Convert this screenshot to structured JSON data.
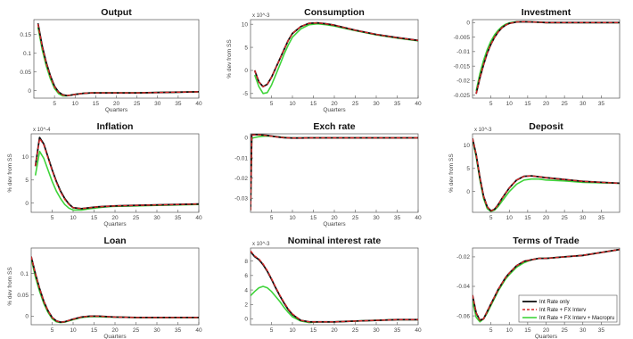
{
  "colors": {
    "black": "#111111",
    "red": "#d62728",
    "green": "#3fd43a",
    "axis": "#555555",
    "grid": "#e6e6e6"
  },
  "legend": {
    "placement": "bottom-right",
    "entries": [
      "Int Rate only",
      "Int Rate + FX Interv",
      "Int Rate + FX Interv + Macropru"
    ]
  },
  "chart_data": [
    {
      "type": "line",
      "title": "Output",
      "xlabel": "Quarters",
      "ylabel": "",
      "xlim": [
        0,
        40
      ],
      "ylim": [
        -0.02,
        0.19
      ],
      "xticks": [
        "5",
        "10",
        "15",
        "20",
        "25",
        "30",
        "35",
        "40"
      ],
      "yticks": [
        "0",
        "0.05",
        "0.1",
        "0.15"
      ],
      "exponent": "",
      "x": [
        1,
        2,
        3,
        4,
        5,
        6,
        7,
        8,
        9,
        10,
        12,
        14,
        16,
        18,
        20,
        25,
        30,
        35,
        40
      ],
      "series": [
        {
          "values": [
            0.18,
            0.12,
            0.075,
            0.04,
            0.012,
            -0.004,
            -0.011,
            -0.013,
            -0.012,
            -0.01,
            -0.007,
            -0.006,
            -0.006,
            -0.006,
            -0.006,
            -0.006,
            -0.005,
            -0.004,
            -0.003
          ]
        },
        {
          "values": [
            0.178,
            0.118,
            0.073,
            0.038,
            0.01,
            -0.005,
            -0.012,
            -0.013,
            -0.012,
            -0.01,
            -0.007,
            -0.006,
            -0.006,
            -0.006,
            -0.006,
            -0.006,
            -0.005,
            -0.004,
            -0.003
          ]
        },
        {
          "values": [
            0.17,
            0.11,
            0.066,
            0.032,
            0.006,
            -0.008,
            -0.014,
            -0.014,
            -0.012,
            -0.01,
            -0.007,
            -0.006,
            -0.006,
            -0.006,
            -0.006,
            -0.006,
            -0.005,
            -0.004,
            -0.003
          ]
        }
      ]
    },
    {
      "type": "line",
      "title": "Consumption",
      "xlabel": "Quarters",
      "ylabel": "% dev from SS",
      "xlim": [
        0,
        40
      ],
      "ylim": [
        -0.006,
        0.011
      ],
      "xticks": [
        "5",
        "10",
        "15",
        "20",
        "25",
        "30",
        "35",
        "40"
      ],
      "yticks": [
        "-5",
        "0",
        "5",
        "10"
      ],
      "exponent": "x 10^-3",
      "x": [
        1,
        2,
        3,
        4,
        5,
        6,
        7,
        8,
        9,
        10,
        12,
        14,
        16,
        18,
        20,
        25,
        30,
        35,
        40
      ],
      "series": [
        {
          "values": [
            -0.0,
            -0.0025,
            -0.0035,
            -0.003,
            -0.0015,
            0.0005,
            0.0025,
            0.0045,
            0.0065,
            0.008,
            0.0095,
            0.0102,
            0.0103,
            0.0101,
            0.0098,
            0.0087,
            0.0078,
            0.0071,
            0.0065
          ]
        },
        {
          "values": [
            -0.0,
            -0.0025,
            -0.0035,
            -0.003,
            -0.0015,
            0.0005,
            0.0025,
            0.0045,
            0.0065,
            0.008,
            0.0095,
            0.0102,
            0.0103,
            0.0101,
            0.0098,
            0.0087,
            0.0078,
            0.0071,
            0.0065
          ]
        },
        {
          "values": [
            -0.001,
            -0.0035,
            -0.005,
            -0.0048,
            -0.0032,
            -0.001,
            0.0012,
            0.0035,
            0.0055,
            0.0072,
            0.009,
            0.0099,
            0.0101,
            0.0099,
            0.0096,
            0.0086,
            0.0077,
            0.007,
            0.0064
          ]
        }
      ]
    },
    {
      "type": "line",
      "title": "Investment",
      "xlabel": "",
      "ylabel": "",
      "xlim": [
        0,
        40
      ],
      "ylim": [
        -0.026,
        0.001
      ],
      "xticks": [
        "5",
        "10",
        "15",
        "20",
        "25",
        "30",
        "35"
      ],
      "yticks": [
        "0",
        "-0.005",
        "-0.01",
        "-0.015",
        "-0.02",
        "-0.025"
      ],
      "exponent": "",
      "x": [
        1,
        2,
        3,
        4,
        5,
        6,
        7,
        8,
        9,
        10,
        12,
        14,
        16,
        18,
        20,
        25,
        30,
        35,
        40
      ],
      "series": [
        {
          "values": [
            -0.0245,
            -0.019,
            -0.0145,
            -0.0105,
            -0.0075,
            -0.005,
            -0.0032,
            -0.0018,
            -0.0009,
            -0.0003,
            0.0002,
            0.0003,
            0.0002,
            0.0001,
            0.0,
            0.0,
            0.0,
            0.0,
            0.0
          ]
        },
        {
          "values": [
            -0.0245,
            -0.019,
            -0.0145,
            -0.0105,
            -0.0075,
            -0.005,
            -0.0032,
            -0.0018,
            -0.0009,
            -0.0003,
            0.0002,
            0.0003,
            0.0002,
            0.0001,
            0.0,
            0.0,
            0.0,
            0.0,
            0.0
          ]
        },
        {
          "values": [
            -0.0235,
            -0.0175,
            -0.013,
            -0.0093,
            -0.0064,
            -0.0042,
            -0.0026,
            -0.0014,
            -0.0006,
            -0.0001,
            0.0003,
            0.0003,
            0.0002,
            0.0001,
            0.0,
            0.0,
            0.0,
            0.0,
            0.0
          ]
        }
      ]
    },
    {
      "type": "line",
      "title": "Inflation",
      "xlabel": "Quarters",
      "ylabel": "% dev from SS",
      "xlim": [
        0,
        40
      ],
      "ylim": [
        -0.0002,
        0.0015
      ],
      "xticks": [
        "5",
        "10",
        "15",
        "20",
        "25",
        "30",
        "35",
        "40"
      ],
      "yticks": [
        "0",
        "5",
        "10"
      ],
      "exponent": "x 10^-4",
      "x": [
        1,
        2,
        3,
        4,
        5,
        6,
        7,
        8,
        9,
        10,
        12,
        14,
        16,
        18,
        20,
        25,
        30,
        35,
        40
      ],
      "series": [
        {
          "values": [
            0.0008,
            0.00142,
            0.00128,
            0.001,
            0.00072,
            0.00047,
            0.00026,
            0.0001,
            -2e-05,
            -0.0001,
            -0.00012,
            -0.0001,
            -8e-05,
            -7e-05,
            -6e-05,
            -5e-05,
            -4e-05,
            -3e-05,
            -2e-05
          ]
        },
        {
          "values": [
            0.0008,
            0.0014,
            0.00126,
            0.00098,
            0.0007,
            0.00045,
            0.00024,
            8e-05,
            -3e-05,
            -0.0001,
            -0.00012,
            -0.0001,
            -8e-05,
            -7e-05,
            -6e-05,
            -5e-05,
            -4e-05,
            -3e-05,
            -2e-05
          ]
        },
        {
          "values": [
            0.0006,
            0.00112,
            0.00097,
            0.00072,
            0.00047,
            0.00026,
            0.0001,
            -3e-05,
            -0.00011,
            -0.00015,
            -0.00015,
            -0.00012,
            -0.0001,
            -8e-05,
            -7e-05,
            -6e-05,
            -5e-05,
            -4e-05,
            -3e-05
          ]
        }
      ]
    },
    {
      "type": "line",
      "title": "Exch rate",
      "xlabel": "Quarters",
      "ylabel": "",
      "xlim": [
        0,
        40
      ],
      "ylim": [
        -0.037,
        0.002
      ],
      "xticks": [
        "5",
        "10",
        "15",
        "20",
        "25",
        "30",
        "35",
        "40"
      ],
      "yticks": [
        "0",
        "-0.01",
        "-0.02",
        "-0.03"
      ],
      "exponent": "",
      "x": [
        0,
        0.3,
        1,
        2,
        3,
        4,
        5,
        6,
        7,
        8,
        9,
        10,
        12,
        14,
        16,
        18,
        20,
        25,
        30,
        35,
        40
      ],
      "series": [
        {
          "values": [
            -0.036,
            0.0015,
            0.0016,
            0.0016,
            0.0014,
            0.0012,
            0.0009,
            0.0006,
            0.0003,
            0.0001,
            0.0,
            -0.0001,
            -0.0001,
            0.0,
            0.0,
            0.0,
            0.0,
            0.0,
            0.0,
            0.0,
            0.0
          ]
        },
        {
          "values": [
            -0.036,
            0.0014,
            0.0015,
            0.0015,
            0.0013,
            0.0011,
            0.0008,
            0.0005,
            0.0003,
            0.0001,
            0.0,
            -0.0001,
            -0.0001,
            0.0,
            0.0,
            0.0,
            0.0,
            0.0,
            0.0,
            0.0,
            0.0
          ]
        },
        {
          "values": [
            -0.036,
            -0.0002,
            0.0002,
            0.0006,
            0.0008,
            0.0009,
            0.0008,
            0.0006,
            0.0004,
            0.0002,
            0.0,
            -0.0001,
            -0.0001,
            0.0,
            0.0,
            0.0,
            0.0,
            0.0,
            0.0,
            0.0,
            0.0
          ]
        }
      ]
    },
    {
      "type": "line",
      "title": "Deposit",
      "xlabel": "",
      "ylabel": "% dev from SS",
      "xlim": [
        0,
        40
      ],
      "ylim": [
        -0.0045,
        0.0125
      ],
      "xticks": [
        "5",
        "10",
        "15",
        "20",
        "25",
        "30",
        "35"
      ],
      "yticks": [
        "0",
        "5",
        "10"
      ],
      "exponent": "x 10^-3",
      "x": [
        0,
        1,
        2,
        3,
        4,
        5,
        6,
        7,
        8,
        10,
        12,
        14,
        16,
        18,
        20,
        25,
        30,
        35,
        40
      ],
      "series": [
        {
          "values": [
            0.0115,
            0.008,
            0.003,
            -0.001,
            -0.0033,
            -0.0042,
            -0.0038,
            -0.0028,
            -0.0015,
            0.0008,
            0.0025,
            0.0033,
            0.0034,
            0.0032,
            0.003,
            0.0026,
            0.0022,
            0.002,
            0.0018
          ]
        },
        {
          "values": [
            0.0115,
            0.008,
            0.003,
            -0.001,
            -0.0033,
            -0.0042,
            -0.0038,
            -0.0028,
            -0.0015,
            0.0008,
            0.0025,
            0.0033,
            0.0034,
            0.0032,
            0.003,
            0.0026,
            0.0022,
            0.002,
            0.0018
          ]
        },
        {
          "values": [
            0.0113,
            0.0075,
            0.0025,
            -0.0015,
            -0.0037,
            -0.0043,
            -0.004,
            -0.0032,
            -0.0021,
            0.0,
            0.0016,
            0.0025,
            0.0027,
            0.0027,
            0.0025,
            0.0023,
            0.002,
            0.0019,
            0.0018
          ]
        }
      ]
    },
    {
      "type": "line",
      "title": "Loan",
      "xlabel": "Quarters",
      "ylabel": "% dev from SS",
      "xlim": [
        0,
        40
      ],
      "ylim": [
        -0.02,
        0.16
      ],
      "xticks": [
        "5",
        "10",
        "15",
        "20",
        "25",
        "30",
        "35",
        "40"
      ],
      "yticks": [
        "0",
        "0.05",
        "0.1"
      ],
      "exponent": "",
      "x": [
        0,
        1,
        2,
        3,
        4,
        5,
        6,
        7,
        8,
        9,
        10,
        12,
        14,
        16,
        18,
        20,
        25,
        30,
        35,
        40
      ],
      "series": [
        {
          "values": [
            0.14,
            0.1,
            0.065,
            0.035,
            0.013,
            -0.003,
            -0.011,
            -0.014,
            -0.013,
            -0.01,
            -0.007,
            -0.002,
            0.0,
            0.0,
            -0.001,
            -0.002,
            -0.003,
            -0.003,
            -0.003,
            -0.003
          ]
        },
        {
          "values": [
            0.14,
            0.1,
            0.065,
            0.035,
            0.013,
            -0.003,
            -0.011,
            -0.014,
            -0.013,
            -0.01,
            -0.007,
            -0.002,
            0.0,
            0.0,
            -0.001,
            -0.002,
            -0.003,
            -0.003,
            -0.003,
            -0.003
          ]
        },
        {
          "values": [
            0.135,
            0.092,
            0.058,
            0.03,
            0.009,
            -0.006,
            -0.013,
            -0.015,
            -0.014,
            -0.011,
            -0.008,
            -0.003,
            -0.001,
            -0.001,
            -0.002,
            -0.002,
            -0.003,
            -0.003,
            -0.003,
            -0.003
          ]
        }
      ]
    },
    {
      "type": "line",
      "title": "Nominal interest rate",
      "xlabel": "",
      "ylabel": "",
      "xlim": [
        0,
        40
      ],
      "ylim": [
        -0.0008,
        0.0098
      ],
      "xticks": [
        "5",
        "10",
        "15",
        "20",
        "25",
        "30",
        "35",
        "40"
      ],
      "yticks": [
        "0",
        "2",
        "4",
        "6",
        "8"
      ],
      "exponent": "x 10^-3",
      "x": [
        0,
        1,
        2,
        3,
        4,
        5,
        6,
        7,
        8,
        9,
        10,
        12,
        14,
        16,
        18,
        20,
        25,
        30,
        35,
        40
      ],
      "series": [
        {
          "values": [
            0.0093,
            0.0086,
            0.0082,
            0.0075,
            0.0066,
            0.0055,
            0.0043,
            0.0032,
            0.0022,
            0.0013,
            0.0006,
            -0.0002,
            -0.0004,
            -0.0004,
            -0.0004,
            -0.0004,
            -0.0003,
            -0.0002,
            -0.0001,
            -0.0001
          ]
        },
        {
          "values": [
            0.0094,
            0.0087,
            0.0083,
            0.0076,
            0.0067,
            0.0056,
            0.0044,
            0.0033,
            0.0023,
            0.0014,
            0.0007,
            -0.0002,
            -0.0004,
            -0.0004,
            -0.0004,
            -0.0004,
            -0.0003,
            -0.0002,
            -0.0001,
            -0.0001
          ]
        },
        {
          "values": [
            0.0032,
            0.0038,
            0.0043,
            0.0045,
            0.0043,
            0.0038,
            0.0031,
            0.0024,
            0.0016,
            0.0009,
            0.0003,
            -0.0003,
            -0.0005,
            -0.0004,
            -0.0004,
            -0.0004,
            -0.0003,
            -0.0002,
            -0.0001,
            -0.0001
          ]
        }
      ]
    },
    {
      "type": "line",
      "title": "Terms of Trade",
      "xlabel": "Quarters",
      "ylabel": "",
      "xlim": [
        0,
        40
      ],
      "ylim": [
        -0.066,
        -0.014
      ],
      "xticks": [
        "5",
        "10",
        "15",
        "20",
        "25",
        "30",
        "35"
      ],
      "yticks": [
        "-0.02",
        "-0.04",
        "-0.06"
      ],
      "exponent": "",
      "x": [
        0,
        1,
        2,
        3,
        4,
        5,
        6,
        7,
        8,
        9,
        10,
        12,
        14,
        16,
        18,
        20,
        25,
        30,
        35,
        40
      ],
      "series": [
        {
          "values": [
            -0.046,
            -0.058,
            -0.063,
            -0.062,
            -0.057,
            -0.052,
            -0.047,
            -0.042,
            -0.038,
            -0.034,
            -0.031,
            -0.026,
            -0.023,
            -0.022,
            -0.021,
            -0.021,
            -0.02,
            -0.019,
            -0.017,
            -0.015
          ]
        },
        {
          "values": [
            -0.046,
            -0.058,
            -0.063,
            -0.062,
            -0.057,
            -0.052,
            -0.047,
            -0.042,
            -0.038,
            -0.034,
            -0.031,
            -0.026,
            -0.023,
            -0.022,
            -0.021,
            -0.021,
            -0.02,
            -0.019,
            -0.017,
            -0.015
          ]
        },
        {
          "values": [
            -0.05,
            -0.061,
            -0.064,
            -0.062,
            -0.058,
            -0.053,
            -0.048,
            -0.043,
            -0.039,
            -0.035,
            -0.032,
            -0.027,
            -0.024,
            -0.022,
            -0.021,
            -0.021,
            -0.02,
            -0.019,
            -0.017,
            -0.015
          ]
        }
      ]
    }
  ]
}
